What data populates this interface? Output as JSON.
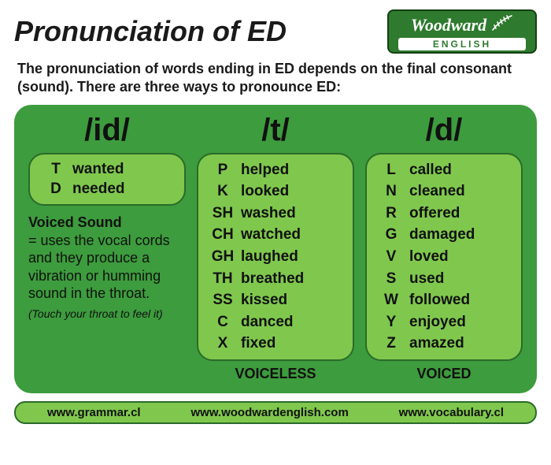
{
  "title": "Pronunciation of ED",
  "logo": {
    "brand": "Woodward",
    "sub": "ENGLISH"
  },
  "intro": "The pronunciation of words ending in ED depends on the final consonant (sound). There are three ways to pronounce ED:",
  "columns": {
    "id": {
      "header": "/id/",
      "rows": [
        {
          "letter": "T",
          "word": "wanted"
        },
        {
          "letter": "D",
          "word": "needed"
        }
      ]
    },
    "t": {
      "header": "/t/",
      "footer": "VOICELESS",
      "rows": [
        {
          "letter": "P",
          "word": "helped"
        },
        {
          "letter": "K",
          "word": "looked"
        },
        {
          "letter": "SH",
          "word": "washed"
        },
        {
          "letter": "CH",
          "word": "watched"
        },
        {
          "letter": "GH",
          "word": "laughed"
        },
        {
          "letter": "TH",
          "word": "breathed"
        },
        {
          "letter": "SS",
          "word": "kissed"
        },
        {
          "letter": "C",
          "word": "danced"
        },
        {
          "letter": "X",
          "word": "fixed"
        }
      ]
    },
    "d": {
      "header": "/d/",
      "footer": "VOICED",
      "rows": [
        {
          "letter": "L",
          "word": "called"
        },
        {
          "letter": "N",
          "word": "cleaned"
        },
        {
          "letter": "R",
          "word": "offered"
        },
        {
          "letter": "G",
          "word": "damaged"
        },
        {
          "letter": "V",
          "word": "loved"
        },
        {
          "letter": "S",
          "word": "used"
        },
        {
          "letter": "W",
          "word": "followed"
        },
        {
          "letter": "Y",
          "word": "enjoyed"
        },
        {
          "letter": "Z",
          "word": "amazed"
        }
      ]
    }
  },
  "voiced": {
    "heading": "Voiced Sound",
    "body": "= uses the vocal cords and they produce a vibration or humming sound in the throat.",
    "note": "(Touch your throat to feel it)"
  },
  "links": [
    "www.grammar.cl",
    "www.woodwardenglish.com",
    "www.vocabulary.cl"
  ],
  "style": {
    "panel_bg": "#3d9c3d",
    "pill_bg": "#7fc84d",
    "pill_border": "#2a6b2a"
  }
}
